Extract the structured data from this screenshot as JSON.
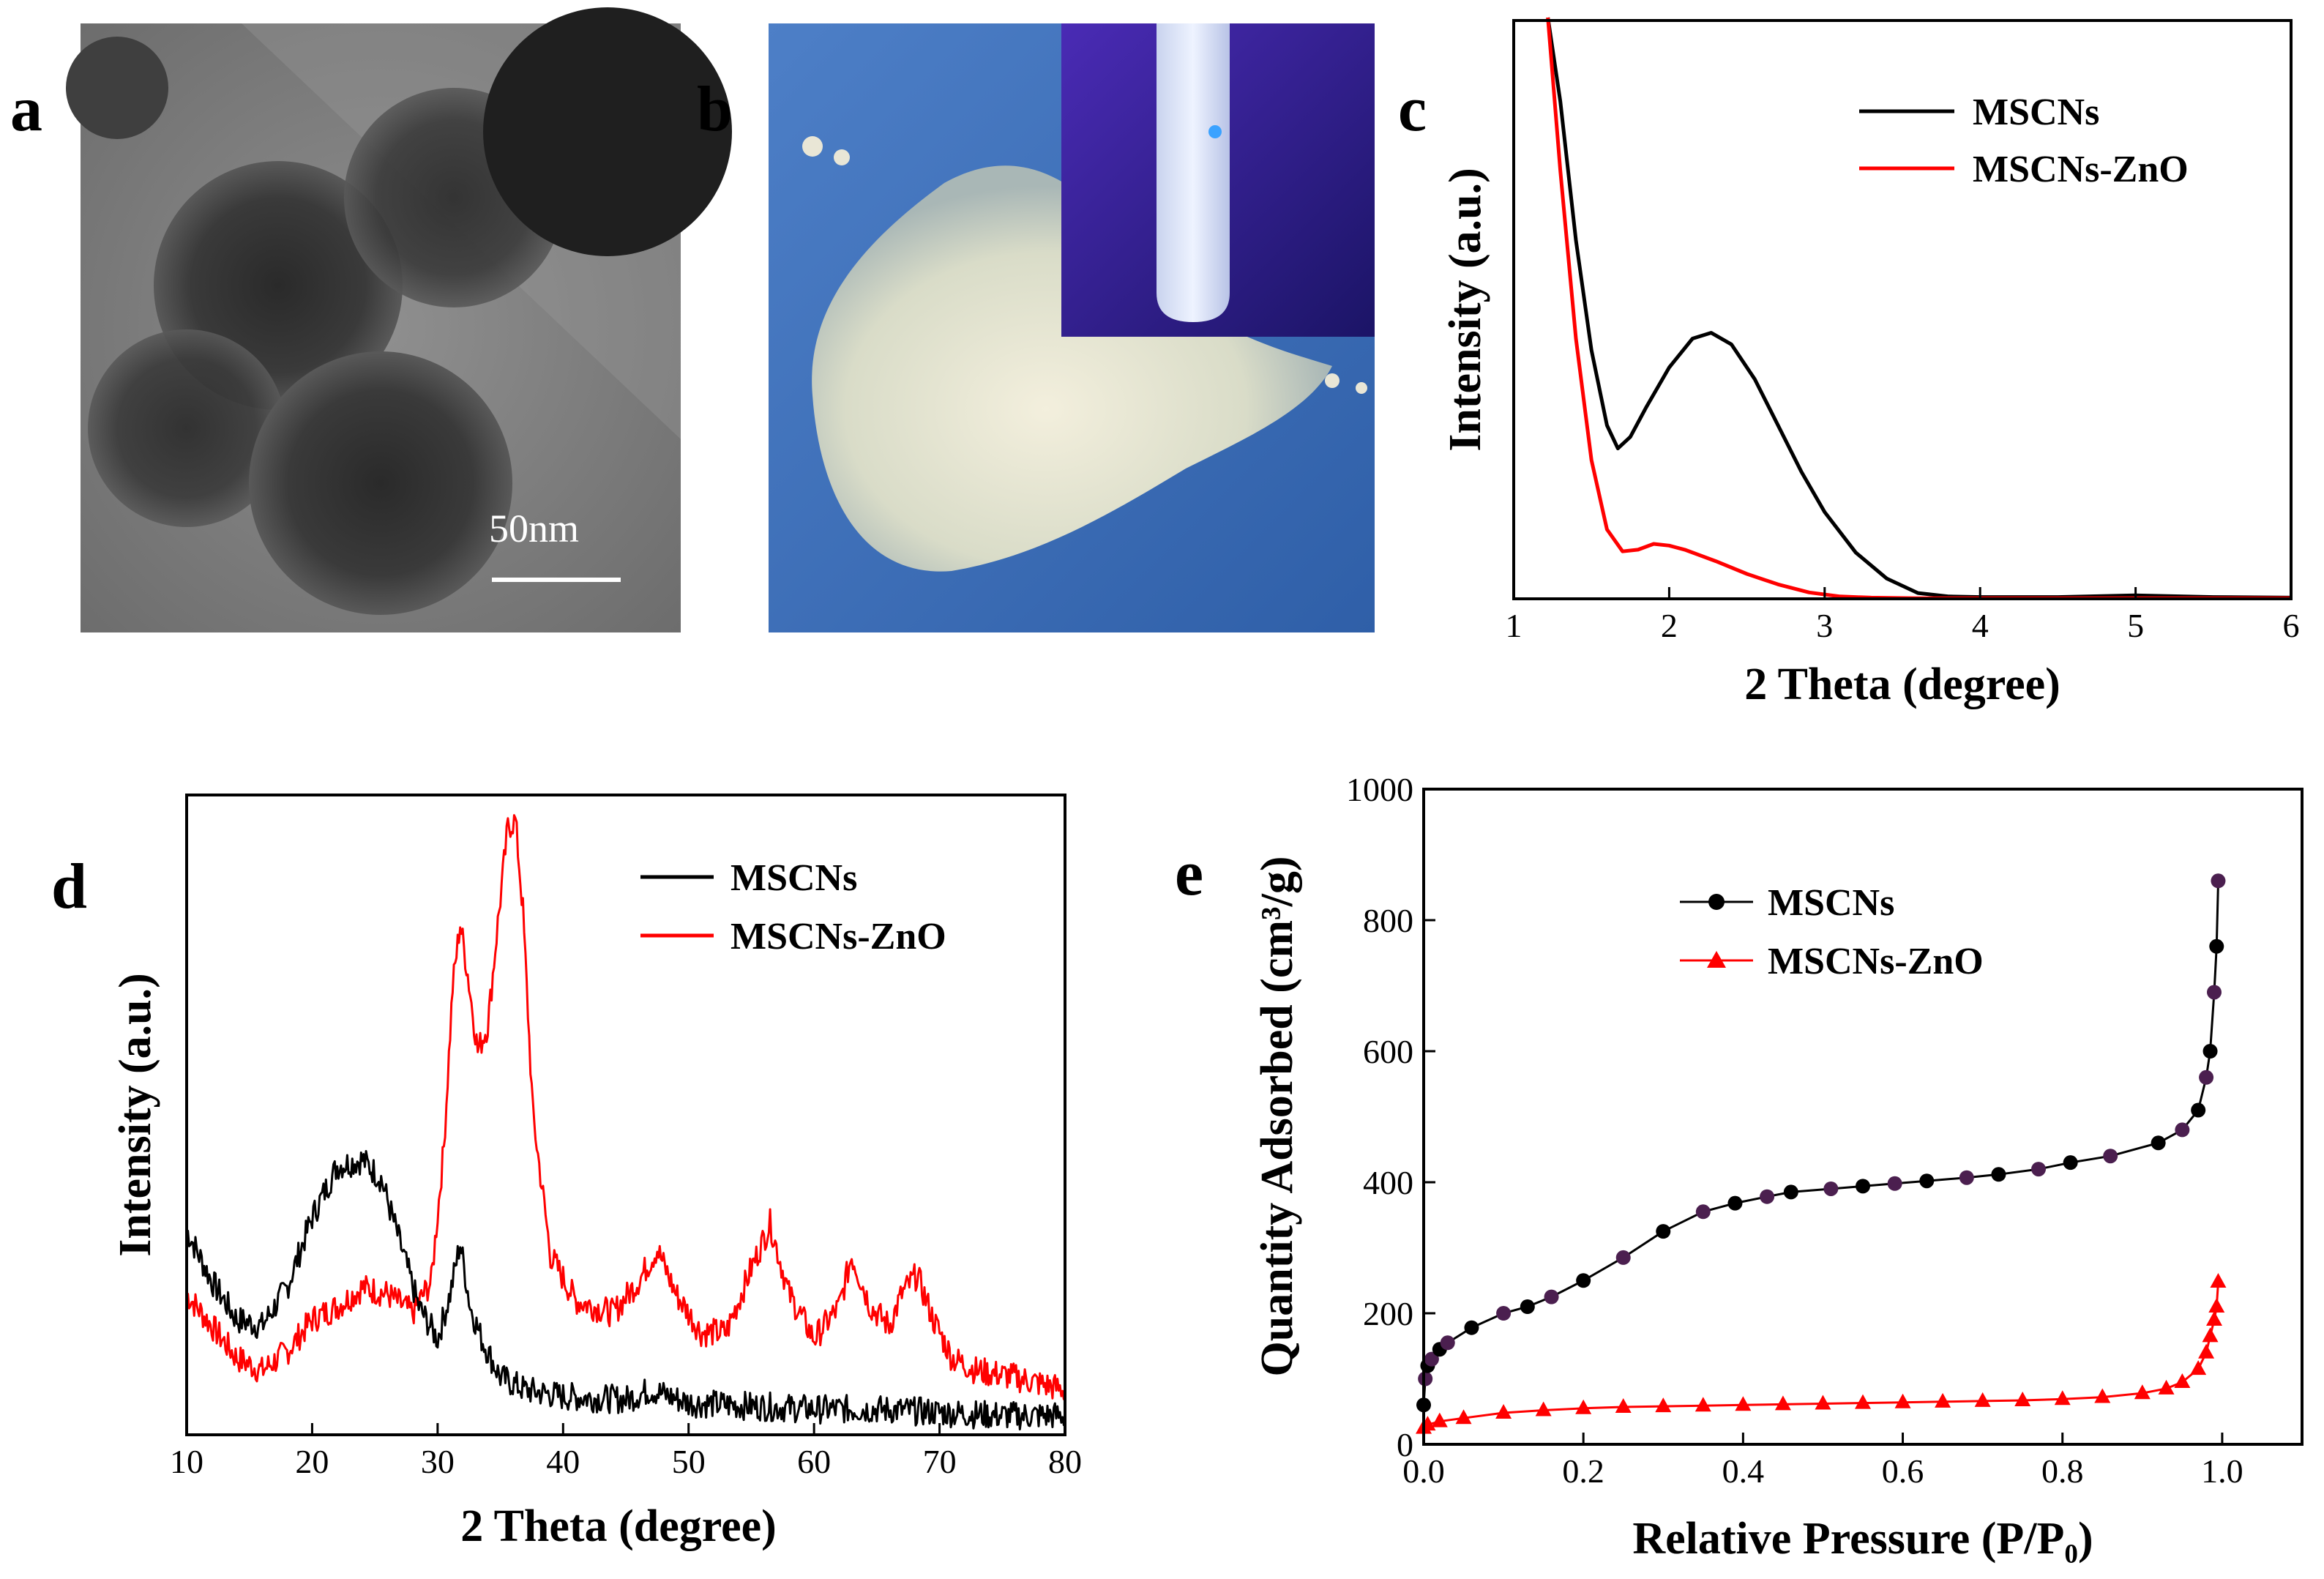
{
  "panels": {
    "a": {
      "label": "a",
      "scale_bar": "50nm"
    },
    "b": {
      "label": "b"
    }
  },
  "chart_data": [
    {
      "id": "c",
      "panel_label": "c",
      "type": "line",
      "xlabel": "2 Theta (degree)",
      "ylabel": "Intensity (a.u.)",
      "xlim": [
        1,
        6
      ],
      "ylim": [
        0,
        1
      ],
      "x_ticks": [
        "1",
        "2",
        "3",
        "4",
        "5",
        "6"
      ],
      "x_tick_values": [
        1,
        2,
        3,
        4,
        5,
        6
      ],
      "legend_position": "top-right",
      "series": [
        {
          "name": "MSCNs",
          "color": "#000000",
          "x": [
            1.22,
            1.3,
            1.4,
            1.5,
            1.6,
            1.67,
            1.75,
            1.85,
            2.0,
            2.15,
            2.27,
            2.4,
            2.55,
            2.7,
            2.85,
            3.0,
            3.2,
            3.4,
            3.6,
            3.8,
            4.0,
            4.5,
            5.0,
            5.5,
            6.0
          ],
          "y": [
            1.02,
            0.86,
            0.62,
            0.43,
            0.3,
            0.26,
            0.28,
            0.33,
            0.4,
            0.45,
            0.46,
            0.44,
            0.38,
            0.3,
            0.22,
            0.15,
            0.08,
            0.035,
            0.01,
            0.004,
            0.003,
            0.003,
            0.006,
            0.003,
            0.002
          ]
        },
        {
          "name": "MSCNs-ZnO",
          "color": "#ff0000",
          "x": [
            1.22,
            1.3,
            1.4,
            1.5,
            1.6,
            1.7,
            1.8,
            1.9,
            2.0,
            2.1,
            2.3,
            2.5,
            2.7,
            2.9,
            3.1,
            3.3,
            3.6,
            4.0,
            5.0,
            6.0
          ],
          "y": [
            1.02,
            0.74,
            0.45,
            0.24,
            0.12,
            0.082,
            0.085,
            0.095,
            0.092,
            0.085,
            0.065,
            0.043,
            0.025,
            0.011,
            0.004,
            0.002,
            0.001,
            0.001,
            0.001,
            0.001
          ]
        }
      ]
    },
    {
      "id": "d",
      "panel_label": "d",
      "type": "line",
      "xlabel": "2 Theta (degree)",
      "ylabel": "Intensity (a.u.)",
      "xlim": [
        10,
        80
      ],
      "ylim": [
        0,
        1
      ],
      "x_ticks": [
        "10",
        "20",
        "30",
        "40",
        "50",
        "60",
        "70",
        "80"
      ],
      "x_tick_values": [
        10,
        20,
        30,
        40,
        50,
        60,
        70,
        80
      ],
      "legend_position": "top-right",
      "series": [
        {
          "name": "MSCNs",
          "color": "#000000",
          "x": [
            10,
            12,
            14,
            16,
            18,
            20,
            22,
            24,
            25.5,
            27,
            28.5,
            30,
            31,
            31.8,
            32.6,
            33.5,
            35,
            37,
            40,
            45,
            47,
            50,
            55,
            60,
            65,
            70,
            75,
            80
          ],
          "y": [
            0.32,
            0.24,
            0.18,
            0.17,
            0.23,
            0.34,
            0.42,
            0.43,
            0.4,
            0.3,
            0.2,
            0.15,
            0.22,
            0.3,
            0.2,
            0.15,
            0.09,
            0.07,
            0.06,
            0.055,
            0.07,
            0.05,
            0.045,
            0.04,
            0.04,
            0.035,
            0.03,
            0.03
          ]
        },
        {
          "name": "MSCNs-ZnO",
          "color": "#ff0000",
          "x": [
            10,
            12,
            14,
            16,
            18,
            20,
            22,
            24,
            26,
            28,
            29.5,
            30.5,
            31.2,
            31.8,
            32.4,
            33.2,
            34,
            34.8,
            35.6,
            36.2,
            36.8,
            37.6,
            39,
            41,
            44,
            46,
            47.5,
            49,
            51,
            53,
            55,
            56.5,
            58,
            60,
            62,
            63,
            64.5,
            66,
            67,
            68.2,
            69.5,
            71,
            73,
            76,
            80
          ],
          "y": [
            0.22,
            0.17,
            0.12,
            0.1,
            0.13,
            0.18,
            0.2,
            0.23,
            0.22,
            0.19,
            0.24,
            0.45,
            0.7,
            0.8,
            0.72,
            0.6,
            0.64,
            0.8,
            0.95,
            0.96,
            0.82,
            0.5,
            0.28,
            0.21,
            0.19,
            0.24,
            0.29,
            0.22,
            0.16,
            0.16,
            0.26,
            0.33,
            0.22,
            0.15,
            0.2,
            0.28,
            0.2,
            0.17,
            0.22,
            0.25,
            0.18,
            0.12,
            0.1,
            0.09,
            0.07
          ]
        }
      ]
    },
    {
      "id": "e",
      "panel_label": "e",
      "type": "scatter",
      "xlabel": "Relative Pressure (P/P₀)",
      "ylabel": "Quantity Adsorbed (cm³/g)",
      "xlim": [
        0,
        1.1
      ],
      "ylim": [
        0,
        1000
      ],
      "x_ticks": [
        "0.0",
        "0.2",
        "0.4",
        "0.6",
        "0.8",
        "1.0"
      ],
      "x_tick_values": [
        0,
        0.2,
        0.4,
        0.6,
        0.8,
        1.0
      ],
      "y_ticks": [
        "0",
        "200",
        "400",
        "600",
        "800",
        "1000"
      ],
      "y_tick_values": [
        0,
        200,
        400,
        600,
        800,
        1000
      ],
      "legend_position": "upper-left",
      "series": [
        {
          "name": "MSCNs",
          "color": "#000000",
          "marker": "circle",
          "x": [
            0.0,
            0.002,
            0.005,
            0.01,
            0.02,
            0.03,
            0.06,
            0.1,
            0.13,
            0.16,
            0.2,
            0.25,
            0.3,
            0.35,
            0.39,
            0.43,
            0.46,
            0.51,
            0.55,
            0.59,
            0.63,
            0.68,
            0.72,
            0.77,
            0.81,
            0.86,
            0.92,
            0.95,
            0.97,
            0.98,
            0.985,
            0.99,
            0.993,
            0.995
          ],
          "y": [
            60,
            100,
            120,
            130,
            145,
            155,
            178,
            200,
            210,
            225,
            250,
            285,
            325,
            355,
            368,
            378,
            385,
            390,
            394,
            398,
            402,
            407,
            412,
            420,
            430,
            440,
            460,
            480,
            510,
            560,
            600,
            690,
            760,
            860
          ]
        },
        {
          "name": "MSCNs-ZnO",
          "color": "#ff0000",
          "marker": "triangle",
          "x": [
            0.0,
            0.005,
            0.02,
            0.05,
            0.1,
            0.15,
            0.2,
            0.25,
            0.3,
            0.35,
            0.4,
            0.45,
            0.5,
            0.55,
            0.6,
            0.65,
            0.7,
            0.75,
            0.8,
            0.85,
            0.9,
            0.93,
            0.95,
            0.97,
            0.98,
            0.985,
            0.99,
            0.993,
            0.995
          ],
          "y": [
            25,
            30,
            35,
            40,
            48,
            52,
            55,
            57,
            58,
            59,
            60,
            61,
            62,
            63,
            64,
            65,
            66,
            67,
            69,
            72,
            78,
            85,
            95,
            115,
            140,
            165,
            190,
            210,
            248
          ]
        }
      ]
    }
  ]
}
